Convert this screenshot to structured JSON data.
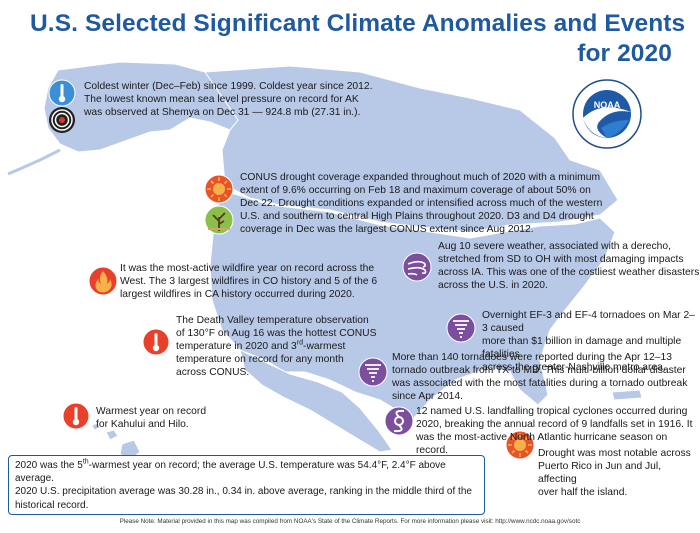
{
  "title": {
    "line1": "U.S. Selected Significant Climate Anomalies and Events",
    "line2": "for 2020"
  },
  "noaa_logo": {
    "text": "NOAA",
    "ring_text": "NATIONAL OCEANIC AND ATMOSPHERIC ADMINISTRATION · U.S. DEPARTMENT OF COMMERCE"
  },
  "events": {
    "alaska_line1": "Coldest winter (Dec–Feb) since 1999. Coldest year since 2012.",
    "alaska_line2": "The lowest known mean sea level pressure on record for AK",
    "alaska_line3": "was observed at Shemya on Dec 31 — 924.8 mb (27.31 in.).",
    "drought_line1": "CONUS drought coverage expanded throughout much of 2020 with a minimum",
    "drought_line2": "extent of 9.6% occurring on Feb 18 and maximum coverage of about 50% on",
    "drought_line3": "Dec 22. Drought conditions expanded or intensified across much of the western",
    "drought_line4": "U.S. and southern to central High Plains throughout 2020.  D3 and D4 drought",
    "drought_line5": "coverage in Dec was the largest CONUS extent since Aug 2012.",
    "wildfire_line1": "It was the most-active wildfire year on record across the",
    "wildfire_line2": "West. The 3 largest wildfires in CO history and 5 of the 6",
    "wildfire_line3": "largest wildfires in CA history occurred during 2020.",
    "derecho_line1": "Aug 10 severe weather, associated with a derecho,",
    "derecho_line2": "stretched from SD to OH with most damaging impacts",
    "derecho_line3": "across IA. This was one of the costliest weather disasters",
    "derecho_line4": "across the U.S. in 2020.",
    "deathvalley_line1": "The Death Valley temperature observation",
    "deathvalley_line2": "of 130°F on Aug 16 was the hottest CONUS",
    "deathvalley_line3": "temperature in 2020 and 3",
    "deathvalley_sup": "rd",
    "deathvalley_line3b": "-warmest",
    "deathvalley_line4": "temperature on record for any month",
    "deathvalley_line5": "across CONUS.",
    "nashville_line1": "Overnight EF-3 and EF-4 tornadoes on Mar 2–3 caused",
    "nashville_line2": "more than $1 billion in damage and multiple fatalities",
    "nashville_line3": "across the greater-Nashville metro area.",
    "easter_line1": "More than 140 tornadoes were reported during the Apr 12–13",
    "easter_line2": "tornado outbreak from TX to MD. This multi-billion dollar disaster",
    "easter_line3": "was associated with the most fatalities during a tornado outbreak",
    "easter_line4": "since Apr 2014.",
    "hawaii_line1": "Warmest year on record",
    "hawaii_line2": "for Kahului and Hilo.",
    "hurricane_line1": "12 named U.S. landfalling tropical cyclones occurred during",
    "hurricane_line2": "2020, breaking the annual record of 9 landfalls set in 1916. It",
    "hurricane_line3": "was the most-active North Atlantic hurricane season on record.",
    "pr_line1": "Drought was most notable across",
    "pr_line2": "Puerto Rico in Jun and Jul, affecting",
    "pr_line3": "over half the island."
  },
  "summary": {
    "line1a": "2020 was the 5",
    "line1_sup": "th",
    "line1b": "-warmest year on record; the average U.S. temperature was 54.4°F, 2.4°F above average.",
    "line2": "2020 U.S. precipitation average was 30.28 in., 0.34 in. above average, ranking in the middle third of the",
    "line3": "historical record."
  },
  "footer": "Please Note: Material provided in this map was compiled from NOAA's State of the Climate Reports. For more information please visit: http://www.ncdc.noaa.gov/sotc",
  "colors": {
    "title": "#1f5a9e",
    "map_fill": "#b7c8e6",
    "warm_icon": "#e8532a",
    "cold_icon": "#3b8fd6",
    "storm_icon": "#7b4f9d"
  }
}
